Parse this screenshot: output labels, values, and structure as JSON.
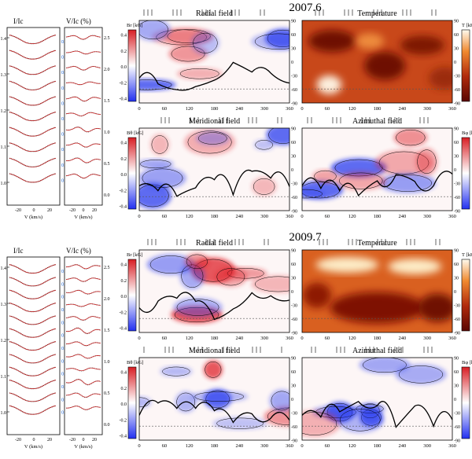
{
  "epochs": [
    {
      "title": "2007.6",
      "stokes_i": {
        "ylabel": "I/Ic",
        "xlabel": "V (km/s)",
        "yticks": [
          "1.4",
          "1.3",
          "1.2",
          "1.1",
          "1.0"
        ],
        "xticks": [
          "-20",
          "0",
          "20"
        ],
        "phases": [
          "0.022",
          "0.188",
          "0.341",
          "0.481",
          "0.597",
          "0.639",
          "0.747",
          "0.775",
          "0.891",
          "0.935"
        ]
      },
      "stokes_v": {
        "ylabel": "V/Ic (%)",
        "xlabel": "V (km/s)",
        "yticks": [
          "2.5",
          "2.0",
          "1.5",
          "1.0",
          "0.5",
          "0.0"
        ],
        "xticks": [
          "-20",
          "0",
          "20"
        ]
      },
      "maps": [
        {
          "title": "Radial field",
          "cbar_label": "Br [kG]",
          "cbar_ticks": [
            "0.4",
            "0.2",
            "0.0",
            "-0.2",
            "-0.4"
          ],
          "yticks": [
            "90",
            "60",
            "30",
            "0",
            "-30",
            "-60",
            "-90"
          ],
          "xticks": [
            "0",
            "60",
            "120",
            "180",
            "240",
            "300",
            "360"
          ]
        },
        {
          "title": "Temperature",
          "cbar_label": "T [kK]",
          "cbar_ticks": [
            "5.2",
            "5.0",
            "4.8",
            "4.6",
            "4.4",
            "4.2"
          ],
          "yticks": [
            "90",
            "60",
            "30",
            "0",
            "-30",
            "-60",
            "-90"
          ],
          "xticks": [
            "0",
            "60",
            "120",
            "180",
            "240",
            "300",
            "360"
          ]
        },
        {
          "title": "Meridional field",
          "cbar_label": "Bθ [kG]",
          "cbar_ticks": [
            "0.4",
            "0.2",
            "0.0",
            "-0.2",
            "-0.4"
          ],
          "yticks": [
            "90",
            "60",
            "30",
            "0",
            "-30",
            "-60",
            "-90"
          ],
          "xticks": [
            "0",
            "60",
            "120",
            "180",
            "240",
            "300",
            "360"
          ]
        },
        {
          "title": "Azimuthal field",
          "cbar_label": "Bφ [kG]",
          "cbar_ticks": [
            "0.4",
            "0.2",
            "0.0",
            "-0.2",
            "-0.4"
          ],
          "yticks": [
            "90",
            "60",
            "30",
            "0",
            "-30",
            "-60",
            "-90"
          ],
          "xticks": [
            "0",
            "60",
            "120",
            "180",
            "240",
            "300",
            "360"
          ]
        }
      ]
    },
    {
      "title": "2009.7",
      "stokes_i": {
        "ylabel": "I/Ic",
        "xlabel": "V (km/s)",
        "yticks": [
          "1.4",
          "1.3",
          "1.2",
          "1.1",
          "1.0"
        ],
        "xticks": [
          "-20",
          "0",
          "20"
        ],
        "phases": [
          "0.102",
          "0.138",
          "0.259",
          "0.303",
          "0.404",
          "0.443",
          "0.554",
          "0.590",
          "0.749",
          "0.829",
          "0.834",
          "0.997"
        ]
      },
      "stokes_v": {
        "ylabel": "V/Ic (%)",
        "xlabel": "V (km/s)",
        "yticks": [
          "2.5",
          "2.0",
          "1.5",
          "1.0",
          "0.5",
          "0.0"
        ],
        "xticks": [
          "-20",
          "0",
          "20"
        ]
      },
      "maps": [
        {
          "title": "Radial field",
          "cbar_label": "Br [kG]",
          "cbar_ticks": [
            "0.4",
            "0.2",
            "0.0",
            "-0.2",
            "-0.4"
          ],
          "yticks": [
            "90",
            "60",
            "30",
            "0",
            "-30",
            "-60",
            "-90"
          ],
          "xticks": [
            "0",
            "60",
            "120",
            "180",
            "240",
            "300",
            "360"
          ]
        },
        {
          "title": "Temperature",
          "cbar_label": "T [kK]",
          "cbar_ticks": [
            "5.2",
            "5.0",
            "4.8",
            "4.6",
            "4.4",
            "4.2",
            "4.0"
          ],
          "yticks": [
            "90",
            "60",
            "30",
            "0",
            "-30",
            "-60",
            "-90"
          ],
          "xticks": [
            "0",
            "60",
            "120",
            "180",
            "240",
            "300",
            "360"
          ]
        },
        {
          "title": "Meridional field",
          "cbar_label": "Bθ [kG]",
          "cbar_ticks": [
            "0.4",
            "0.2",
            "0.0",
            "-0.2",
            "-0.4"
          ],
          "yticks": [
            "90",
            "60",
            "30",
            "0",
            "-30",
            "-60",
            "-90"
          ],
          "xticks": [
            "0",
            "60",
            "120",
            "180",
            "240",
            "300",
            "360"
          ]
        },
        {
          "title": "Azimuthal field",
          "cbar_label": "Bφ [kG]",
          "cbar_ticks": [
            "0.4",
            "0.2",
            "0.0",
            "-0.2",
            "-0.4"
          ],
          "yticks": [
            "90",
            "60",
            "30",
            "0",
            "-30",
            "-60",
            "-90"
          ],
          "xticks": [
            "0",
            "60",
            "120",
            "180",
            "240",
            "300",
            "360"
          ]
        }
      ]
    }
  ],
  "colors": {
    "field_positive": "#e0202a",
    "field_negative": "#2a3cf0",
    "temp_cold": "#7a0a04",
    "temp_hot": "#fff8e8",
    "phase_text": "#1a66d9",
    "model_line": "#d42020"
  }
}
